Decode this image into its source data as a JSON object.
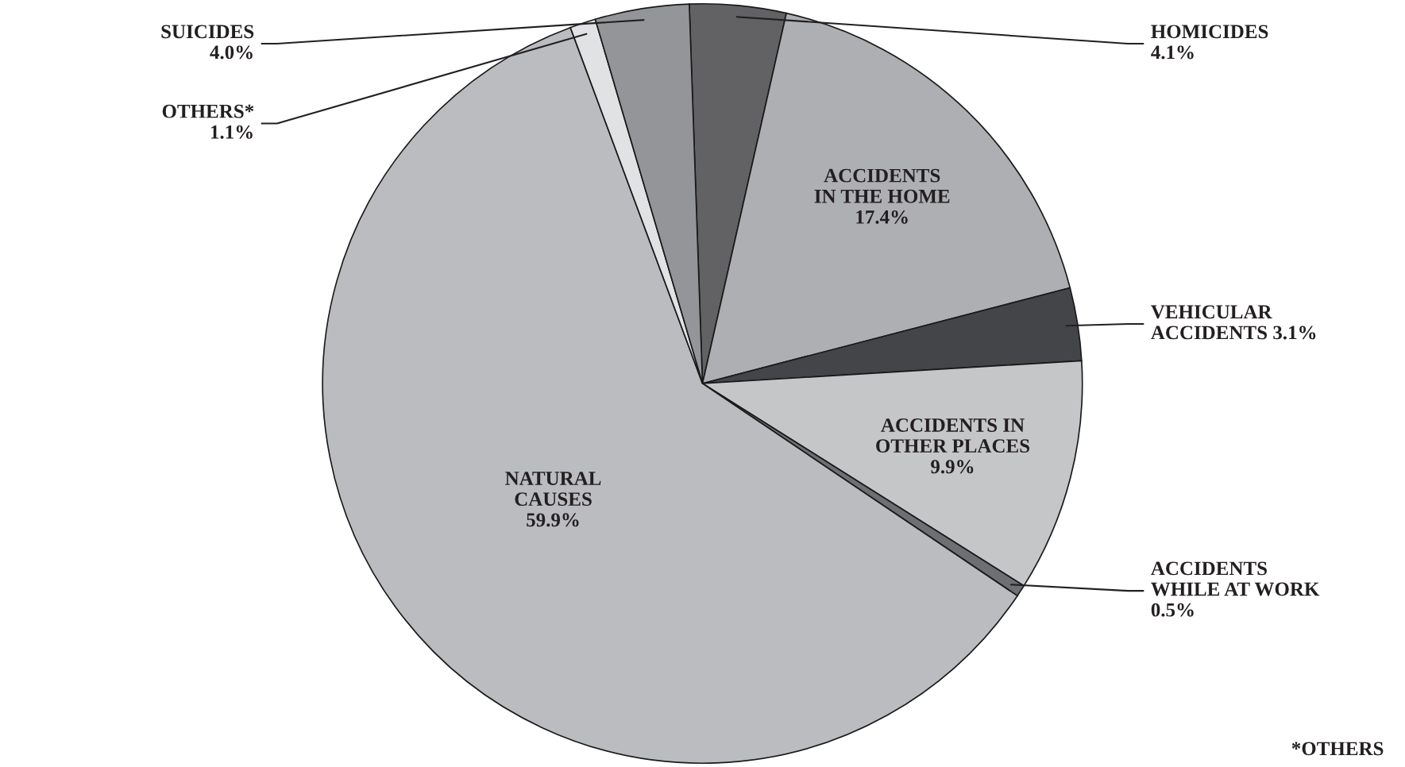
{
  "chart_data": {
    "type": "pie",
    "categories": [
      "HOMICIDES",
      "ACCIDENTS\nIN THE HOME",
      "VEHICULAR\nACCIDENTS",
      "ACCIDENTS IN\nOTHER PLACES",
      "ACCIDENTS\nWHILE AT WORK",
      "NATURAL\nCAUSES",
      "OTHERS*",
      "SUICIDES"
    ],
    "values": [
      4.1,
      17.4,
      3.1,
      9.9,
      0.5,
      59.9,
      1.1,
      4.0
    ],
    "value_labels": [
      "4.1%",
      "17.4%",
      "3.1%",
      "9.9%",
      "0.5%",
      "59.9%",
      "1.1%",
      "4.0%"
    ],
    "colors": [
      "#626265",
      "#aeafb2",
      "#444548",
      "#c5c6c8",
      "#6e6f72",
      "#bbbcc0",
      "#e1e2e4",
      "#949599"
    ],
    "annotations": [
      "*OTHERS"
    ]
  }
}
